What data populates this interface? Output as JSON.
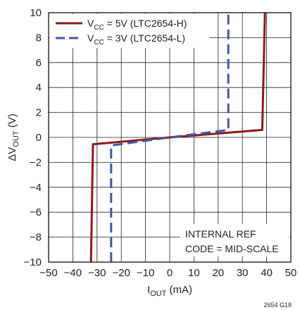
{
  "chart_data": {
    "type": "line",
    "xlabel": {
      "main": "I",
      "sub": "OUT",
      "unit": " (mA)"
    },
    "ylabel": {
      "prefix": "ΔV",
      "sub": "OUT",
      "unit": " (V)"
    },
    "xlim": [
      -50,
      50
    ],
    "ylim": [
      -10,
      10
    ],
    "xticks": [
      -50,
      -40,
      -30,
      -20,
      -10,
      0,
      10,
      20,
      30,
      40,
      50
    ],
    "yticks": [
      -10,
      -8,
      -6,
      -4,
      -2,
      0,
      2,
      4,
      6,
      8,
      10
    ],
    "xtick_labels": [
      "−50",
      "−40",
      "−30",
      "−20",
      "−10",
      "0",
      "10",
      "20",
      "30",
      "40",
      "50"
    ],
    "ytick_labels": [
      "−10",
      "−8",
      "−6",
      "−4",
      "−2",
      "0",
      "2",
      "4",
      "6",
      "8",
      "10"
    ],
    "grid": true,
    "legend_position": "top-left",
    "series": [
      {
        "name": "V_CC = 5V (LTC2654-H)",
        "legend": {
          "v": "V",
          "sub": "CC",
          "rest": " = 5V (LTC2654-H)"
        },
        "color": "#8b1a1a",
        "style": "solid",
        "x": [
          -32.5,
          -31.7,
          0,
          38.2,
          39.3
        ],
        "y": [
          -10,
          -0.55,
          0,
          0.6,
          10
        ]
      },
      {
        "name": "V_CC = 3V (LTC2654-L)",
        "legend": {
          "v": "V",
          "sub": "CC",
          "rest": " = 3V (LTC2654-L)"
        },
        "color": "#3b59a8",
        "style": "dashed",
        "x": [
          -24.2,
          -24.2,
          0,
          24.2,
          24.2
        ],
        "y": [
          -10,
          -0.65,
          0,
          0.6,
          10
        ]
      }
    ],
    "annotations": [
      "INTERNAL REF",
      "CODE = MID-SCALE"
    ]
  },
  "figure_id": "2654 G18"
}
